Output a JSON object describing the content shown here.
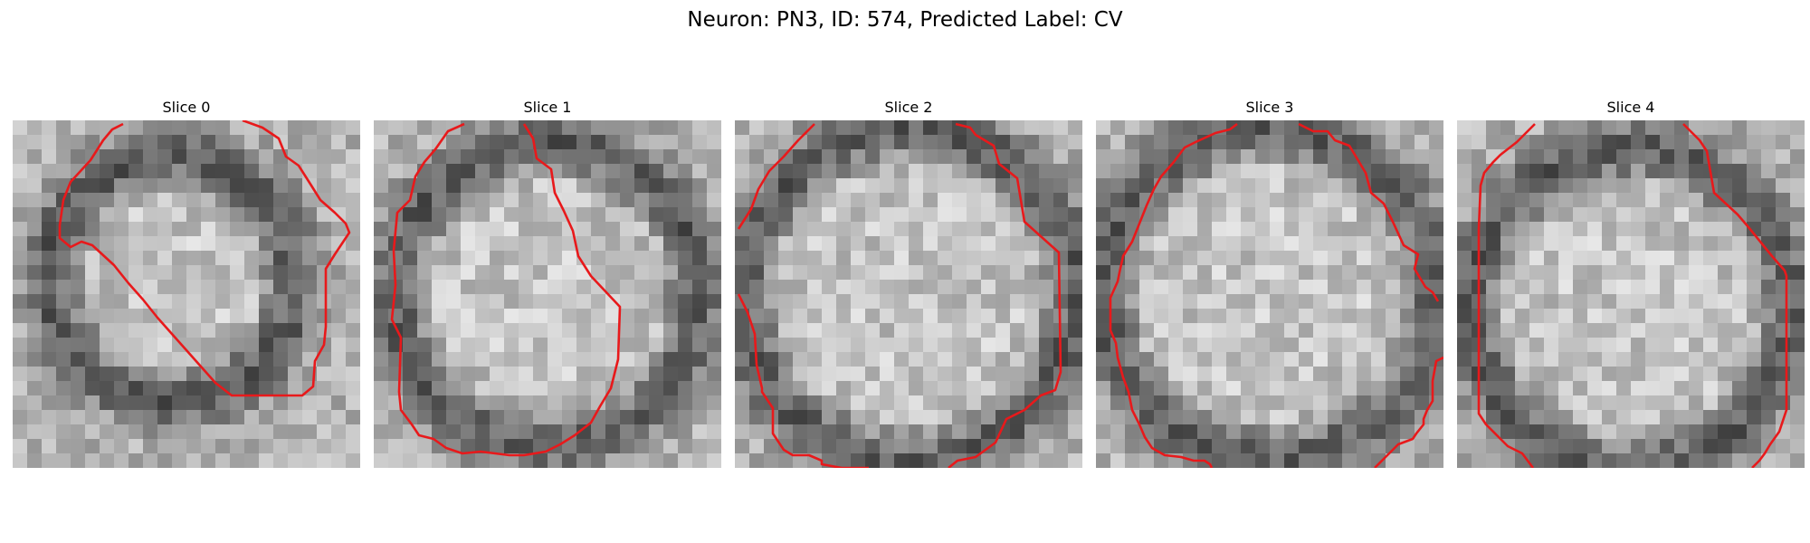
{
  "figure": {
    "title": "Neuron: PN3, ID: 574, Predicted Label: CV"
  },
  "panels": [
    {
      "title": "Slice 0"
    },
    {
      "title": "Slice 1"
    },
    {
      "title": "Slice 2"
    },
    {
      "title": "Slice 3"
    },
    {
      "title": "Slice 4"
    }
  ],
  "style": {
    "contour_color": "#e8191b",
    "colormap": "grayscale",
    "background": "#ffffff"
  }
}
